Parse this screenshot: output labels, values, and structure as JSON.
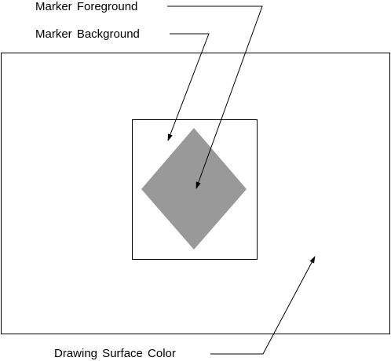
{
  "labels": {
    "marker_foreground": "Marker Foreground",
    "marker_background": "Marker Background",
    "drawing_surface_color": "Drawing Surface Color"
  },
  "colors": {
    "background": "#ffffff",
    "outline": "#000000",
    "marker_fill": "#999999"
  }
}
